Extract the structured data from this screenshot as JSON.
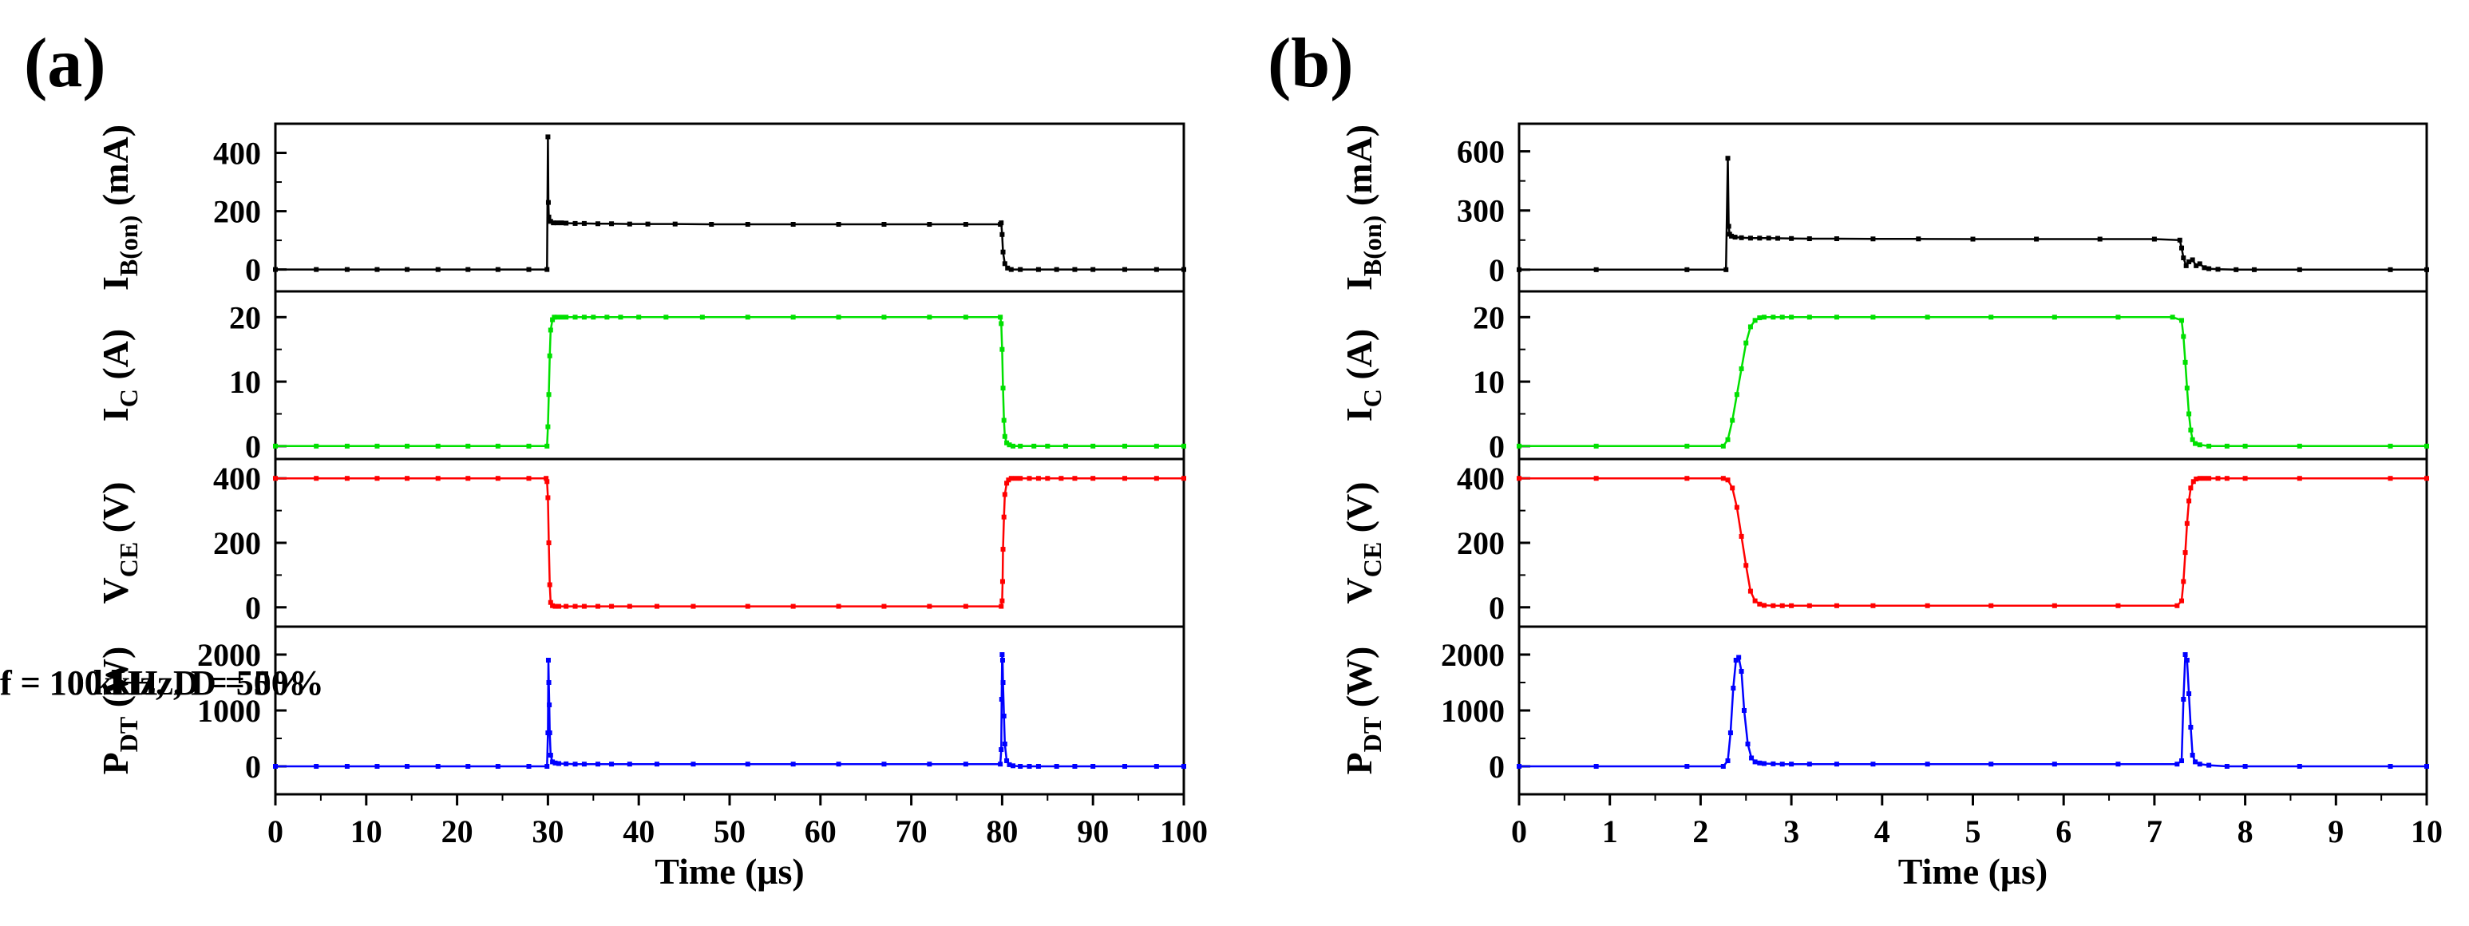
{
  "chart_data": [
    {
      "panel_label": "(a)",
      "type": "line",
      "xlabel": "Time (μs)",
      "xlim": [
        0,
        100
      ],
      "xticks": [
        0,
        10,
        20,
        30,
        40,
        50,
        60,
        70,
        80,
        90,
        100
      ],
      "annotation": "f = 10 kHz, D = 50%",
      "subplots": [
        {
          "ylabel_main": "I",
          "ylabel_sub": "B(on)",
          "ylabel_unit": " (mA)",
          "color": "#000000",
          "ylim": [
            -75,
            500
          ],
          "yticks": [
            0,
            200,
            400
          ],
          "x": [
            0,
            4.5,
            7.9,
            11.2,
            14.5,
            17.9,
            21.2,
            24.5,
            27.9,
            29.9,
            30.0,
            30.05,
            30.1,
            30.3,
            30.6,
            31,
            31.5,
            32,
            33,
            34,
            35.5,
            37,
            39,
            41,
            44,
            48,
            52,
            57,
            62,
            67,
            72,
            76,
            79.8,
            79.9,
            80.0,
            80.1,
            80.3,
            80.6,
            81,
            82,
            84,
            86,
            88,
            90,
            93.5,
            97,
            100
          ],
          "y": [
            0,
            0,
            0,
            0,
            0,
            0,
            0,
            0,
            0,
            0,
            455,
            230,
            180,
            165,
            160,
            160,
            160,
            159,
            158,
            158,
            157,
            157,
            156,
            156,
            156,
            155,
            155,
            155,
            155,
            155,
            155,
            155,
            155,
            160,
            120,
            60,
            20,
            5,
            0,
            0,
            0,
            0,
            0,
            0,
            0,
            0,
            0
          ]
        },
        {
          "ylabel_main": "I",
          "ylabel_sub": "C",
          "ylabel_unit": " (A)",
          "color": "#00e000",
          "ylim": [
            -2,
            24
          ],
          "yticks": [
            0,
            10,
            20
          ],
          "x": [
            0,
            4.5,
            7.9,
            11.2,
            14.5,
            17.9,
            21.2,
            24.5,
            27.9,
            29.9,
            30.0,
            30.1,
            30.2,
            30.3,
            30.5,
            30.7,
            31,
            31.5,
            32,
            33,
            34,
            35,
            36.5,
            38,
            40,
            43,
            47,
            52,
            57,
            62,
            67,
            72,
            76,
            79.8,
            79.9,
            80.0,
            80.1,
            80.2,
            80.3,
            80.5,
            80.8,
            81.2,
            82,
            83.5,
            85,
            87,
            90,
            93.5,
            97,
            100
          ],
          "y": [
            0,
            0,
            0,
            0,
            0,
            0,
            0,
            0,
            0,
            0,
            3,
            8,
            14,
            18,
            19.6,
            20,
            20,
            20,
            20,
            20,
            20,
            20,
            20,
            20,
            20,
            20,
            20,
            20,
            20,
            20,
            20,
            20,
            20,
            20,
            19,
            15,
            9,
            4,
            1.5,
            0.5,
            0.2,
            0,
            0,
            0,
            0,
            0,
            0,
            0,
            0,
            0
          ]
        },
        {
          "ylabel_main": "V",
          "ylabel_sub": "CE",
          "ylabel_unit": " (V)",
          "color": "#ff0000",
          "ylim": [
            -60,
            460
          ],
          "yticks": [
            0,
            200,
            400
          ],
          "x": [
            0,
            4.5,
            7.9,
            11.2,
            14.5,
            17.9,
            21.2,
            24.5,
            27.9,
            29.8,
            29.9,
            30.0,
            30.1,
            30.2,
            30.3,
            30.5,
            30.8,
            31.2,
            32,
            33,
            34,
            35.5,
            37,
            39,
            42,
            46,
            52,
            57,
            62,
            67,
            72,
            76,
            79.9,
            80.0,
            80.05,
            80.1,
            80.2,
            80.3,
            80.5,
            80.7,
            81,
            81.5,
            82,
            83,
            84,
            85,
            86.5,
            88,
            90,
            93.5,
            97,
            100
          ],
          "y": [
            400,
            400,
            400,
            400,
            400,
            400,
            400,
            400,
            400,
            400,
            390,
            340,
            200,
            70,
            15,
            5,
            3,
            3,
            3,
            3,
            3,
            3,
            3,
            3,
            3,
            3,
            3,
            3,
            3,
            3,
            3,
            3,
            3,
            20,
            80,
            180,
            280,
            350,
            385,
            395,
            400,
            400,
            400,
            400,
            400,
            400,
            400,
            400,
            400,
            400,
            400,
            400
          ]
        },
        {
          "ylabel_main": "P",
          "ylabel_sub": "DT",
          "ylabel_unit": " (W)",
          "color": "#0000ff",
          "ylim": [
            -500,
            2500
          ],
          "yticks": [
            0,
            1000,
            2000
          ],
          "x": [
            0,
            4.5,
            7.9,
            11.2,
            14.5,
            17.9,
            21.2,
            24.5,
            27.9,
            29.9,
            30.0,
            30.05,
            30.1,
            30.15,
            30.2,
            30.3,
            30.5,
            30.8,
            31.2,
            32,
            33,
            34,
            35.5,
            37,
            39,
            42,
            46,
            52,
            57,
            62,
            67,
            72,
            76,
            79.8,
            79.9,
            79.95,
            80.0,
            80.05,
            80.1,
            80.2,
            80.3,
            80.5,
            80.8,
            81.2,
            82,
            83,
            84,
            86,
            88,
            90,
            93.5,
            97,
            100
          ],
          "y": [
            0,
            0,
            0,
            0,
            0,
            0,
            0,
            0,
            0,
            0,
            600,
            1900,
            1500,
            1100,
            600,
            200,
            80,
            60,
            50,
            45,
            40,
            40,
            40,
            40,
            40,
            40,
            40,
            40,
            40,
            40,
            40,
            40,
            40,
            40,
            300,
            1200,
            2000,
            1900,
            1500,
            900,
            400,
            100,
            30,
            10,
            0,
            0,
            0,
            0,
            0,
            0,
            0,
            0,
            0
          ]
        }
      ]
    },
    {
      "panel_label": "(b)",
      "type": "line",
      "xlabel": "Time (μs)",
      "xlim": [
        0,
        10
      ],
      "xticks": [
        0,
        1,
        2,
        3,
        4,
        5,
        6,
        7,
        8,
        9,
        10
      ],
      "annotation": "f = 100 kHz, D = 50%",
      "subplots": [
        {
          "ylabel_main": "I",
          "ylabel_sub": "B(on)",
          "ylabel_unit": " (mA)",
          "color": "#000000",
          "ylim": [
            -110,
            740
          ],
          "yticks": [
            0,
            300,
            600
          ],
          "x": [
            0,
            0.85,
            1.85,
            2.28,
            2.3,
            2.31,
            2.32,
            2.34,
            2.38,
            2.45,
            2.55,
            2.65,
            2.75,
            2.85,
            3.0,
            3.2,
            3.5,
            3.9,
            4.4,
            5.0,
            5.7,
            6.4,
            7.0,
            7.28,
            7.3,
            7.32,
            7.35,
            7.38,
            7.42,
            7.46,
            7.5,
            7.55,
            7.6,
            7.7,
            7.9,
            8.1,
            8.6,
            9.6,
            10
          ],
          "y": [
            0,
            0,
            0,
            0,
            565,
            220,
            180,
            170,
            165,
            162,
            160,
            160,
            160,
            159,
            158,
            157,
            157,
            156,
            156,
            155,
            155,
            155,
            155,
            150,
            110,
            60,
            20,
            40,
            50,
            20,
            30,
            10,
            5,
            2,
            0,
            0,
            0,
            0,
            0
          ]
        },
        {
          "ylabel_main": "I",
          "ylabel_sub": "C",
          "ylabel_unit": " (A)",
          "color": "#00e000",
          "ylim": [
            -2,
            24
          ],
          "yticks": [
            0,
            10,
            20
          ],
          "x": [
            0,
            0.85,
            1.85,
            2.25,
            2.3,
            2.35,
            2.4,
            2.45,
            2.5,
            2.55,
            2.6,
            2.65,
            2.7,
            2.8,
            2.9,
            3.0,
            3.2,
            3.5,
            3.9,
            4.5,
            5.2,
            5.9,
            6.6,
            7.2,
            7.3,
            7.32,
            7.34,
            7.36,
            7.38,
            7.4,
            7.42,
            7.45,
            7.5,
            7.6,
            7.8,
            8.0,
            8.6,
            9.6,
            10
          ],
          "y": [
            0,
            0,
            0,
            0,
            1,
            4,
            8,
            12,
            16,
            18.5,
            19.5,
            19.9,
            20,
            20,
            20,
            20,
            20,
            20,
            20,
            20,
            20,
            20,
            20,
            20,
            19.5,
            17,
            13,
            9,
            5,
            2.5,
            1,
            0.4,
            0.2,
            0,
            0,
            0,
            0,
            0,
            0
          ]
        },
        {
          "ylabel_main": "V",
          "ylabel_sub": "CE",
          "ylabel_unit": " (V)",
          "color": "#ff0000",
          "ylim": [
            -60,
            460
          ],
          "yticks": [
            0,
            200,
            400
          ],
          "x": [
            0,
            0.85,
            1.85,
            2.25,
            2.3,
            2.35,
            2.4,
            2.45,
            2.5,
            2.55,
            2.6,
            2.65,
            2.7,
            2.8,
            2.9,
            3.0,
            3.2,
            3.5,
            3.9,
            4.5,
            5.2,
            5.9,
            6.6,
            7.25,
            7.3,
            7.32,
            7.34,
            7.36,
            7.38,
            7.4,
            7.43,
            7.46,
            7.5,
            7.55,
            7.6,
            7.7,
            7.8,
            8.0,
            8.6,
            9.6,
            10
          ],
          "y": [
            400,
            400,
            400,
            400,
            395,
            370,
            310,
            220,
            130,
            50,
            20,
            10,
            6,
            5,
            5,
            5,
            5,
            5,
            5,
            5,
            5,
            5,
            5,
            5,
            20,
            80,
            170,
            260,
            330,
            370,
            390,
            398,
            400,
            400,
            400,
            400,
            400,
            400,
            400,
            400,
            400
          ]
        },
        {
          "ylabel_main": "P",
          "ylabel_sub": "DT",
          "ylabel_unit": " (W)",
          "color": "#0000ff",
          "ylim": [
            -500,
            2500
          ],
          "yticks": [
            0,
            1000,
            2000
          ],
          "x": [
            0,
            0.85,
            1.85,
            2.25,
            2.3,
            2.33,
            2.36,
            2.39,
            2.42,
            2.45,
            2.48,
            2.52,
            2.56,
            2.6,
            2.65,
            2.7,
            2.8,
            2.9,
            3.0,
            3.2,
            3.5,
            3.9,
            4.5,
            5.2,
            5.9,
            6.6,
            7.25,
            7.3,
            7.32,
            7.34,
            7.36,
            7.38,
            7.4,
            7.42,
            7.45,
            7.5,
            7.6,
            7.8,
            8.0,
            8.6,
            9.6,
            10
          ],
          "y": [
            0,
            0,
            0,
            0,
            100,
            600,
            1400,
            1900,
            1950,
            1700,
            1000,
            400,
            150,
            80,
            60,
            50,
            45,
            40,
            40,
            40,
            40,
            40,
            40,
            40,
            40,
            40,
            40,
            100,
            1200,
            2000,
            1900,
            1300,
            700,
            200,
            80,
            40,
            20,
            0,
            0,
            0,
            0,
            0
          ]
        }
      ]
    }
  ]
}
